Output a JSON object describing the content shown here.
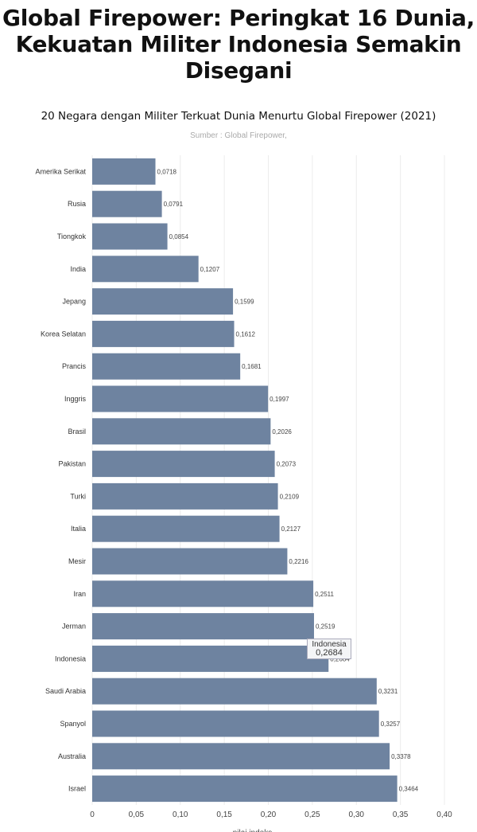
{
  "headline": "Global Firepower: Peringkat 16 Dunia, Kekuatan Militer Indonesia Semakin Disegani",
  "chart_data": {
    "type": "bar",
    "orientation": "horizontal",
    "title": "20 Negara dengan Militer Terkuat Dunia Menurtu Global Firepower (2021)",
    "subtitle": "Sumber : Global Firepower,",
    "xlabel": "nilai indeks",
    "categories": [
      "Amerika Serikat",
      "Rusia",
      "Tiongkok",
      "India",
      "Jepang",
      "Korea Selatan",
      "Prancis",
      "Inggris",
      "Brasil",
      "Pakistan",
      "Turki",
      "Italia",
      "Mesir",
      "Iran",
      "Jerman",
      "Indonesia",
      "Saudi Arabia",
      "Spanyol",
      "Australia",
      "Israel"
    ],
    "values": [
      0.0718,
      0.0791,
      0.0854,
      0.1207,
      0.1599,
      0.1612,
      0.1681,
      0.1997,
      0.2026,
      0.2073,
      0.2109,
      0.2127,
      0.2216,
      0.2511,
      0.2519,
      0.2684,
      0.3231,
      0.3257,
      0.3378,
      0.3464
    ],
    "data_labels": [
      "0,0718",
      "0,0791",
      "0,0854",
      "0,1207",
      "0,1599",
      "0,1612",
      "0,1681",
      "0,1997",
      "0,2026",
      "0,2073",
      "0,2109",
      "0,2127",
      "0,2216",
      "0,2511",
      "0,2519",
      "0,2684",
      "0,3231",
      "0,3257",
      "0,3378",
      "0,3464"
    ],
    "xlim": [
      0,
      0.4
    ],
    "xticks": [
      "0",
      "0,05",
      "0,10",
      "0,15",
      "0,20",
      "0,25",
      "0,30",
      "0,35",
      "0,40"
    ],
    "grid": true,
    "bar_color": "#6e83a0",
    "tooltip": {
      "category": "Indonesia",
      "value": "0,2684"
    }
  }
}
